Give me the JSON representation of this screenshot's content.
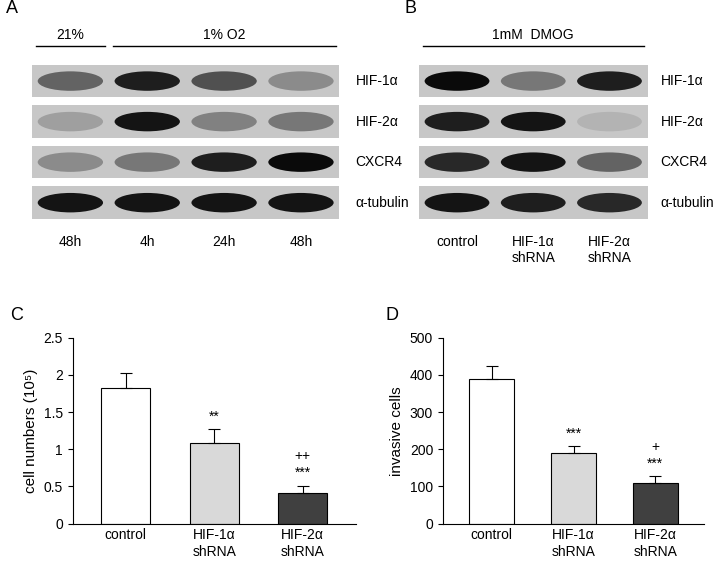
{
  "panels": [
    {
      "title": "A",
      "type": "blot",
      "conditions": [
        {
          "text": "21%",
          "lanes": [
            0,
            0
          ]
        },
        {
          "text": "1% O2",
          "lanes": [
            1,
            3
          ]
        }
      ],
      "lanes": [
        "48h",
        "4h",
        "24h",
        "48h"
      ],
      "lane_position": "below",
      "rows": [
        {
          "name": "HIF-1α",
          "intensity": [
            0.5,
            0.85,
            0.6,
            0.3
          ]
        },
        {
          "name": "HIF-2α",
          "intensity": [
            0.2,
            0.9,
            0.35,
            0.4
          ]
        },
        {
          "name": "CXCR4",
          "intensity": [
            0.3,
            0.4,
            0.85,
            0.95
          ]
        },
        {
          "name": "α-tubulin",
          "intensity": [
            0.9,
            0.9,
            0.9,
            0.9
          ]
        }
      ]
    },
    {
      "title": "B",
      "type": "blot",
      "conditions": [
        {
          "text": "1mM  DMOG",
          "lanes": [
            0,
            2
          ]
        }
      ],
      "lanes": [
        "control",
        "HIF-1α\nshRNA",
        "HIF-2α\nshRNA"
      ],
      "lane_position": "below",
      "rows": [
        {
          "name": "HIF-1α",
          "intensity": [
            0.95,
            0.4,
            0.85
          ]
        },
        {
          "name": "HIF-2α",
          "intensity": [
            0.85,
            0.9,
            0.1
          ]
        },
        {
          "name": "CXCR4",
          "intensity": [
            0.8,
            0.9,
            0.5
          ]
        },
        {
          "name": "α-tubulin",
          "intensity": [
            0.9,
            0.85,
            0.8
          ]
        }
      ]
    }
  ],
  "chart_data": [
    {
      "type": "bar",
      "title": "C",
      "categories": [
        "control",
        "HIF-1α\nshRNA",
        "HIF-2α\nshRNA"
      ],
      "values": [
        1.82,
        1.08,
        0.41
      ],
      "errors": [
        0.2,
        0.19,
        0.1
      ],
      "colors": [
        "#ffffff",
        "#d9d9d9",
        "#404040"
      ],
      "y_label": "cell numbers (10⁵)",
      "ylim": [
        0,
        2.5
      ],
      "yticks": [
        0,
        0.5,
        1,
        1.5,
        2,
        2.5
      ],
      "annotations": [
        {
          "category": "HIF-1α\nshRNA",
          "text": "**"
        },
        {
          "category": "HIF-2α\nshRNA",
          "text": "***"
        },
        {
          "category": "HIF-2α\nshRNA",
          "text": "++"
        }
      ]
    },
    {
      "type": "bar",
      "title": "D",
      "categories": [
        "control",
        "HIF-1α\nshRNA",
        "HIF-2α\nshRNA"
      ],
      "values": [
        388,
        190,
        110
      ],
      "errors": [
        35,
        18,
        17
      ],
      "colors": [
        "#ffffff",
        "#d9d9d9",
        "#404040"
      ],
      "y_label": "invasive cells",
      "ylim": [
        0,
        500
      ],
      "yticks": [
        0,
        100,
        200,
        300,
        400,
        500
      ],
      "annotations": [
        {
          "category": "HIF-1α\nshRNA",
          "text": "***"
        },
        {
          "category": "HIF-2α\nshRNA",
          "text": "***"
        },
        {
          "category": "HIF-2α\nshRNA",
          "text": "+"
        }
      ]
    }
  ]
}
